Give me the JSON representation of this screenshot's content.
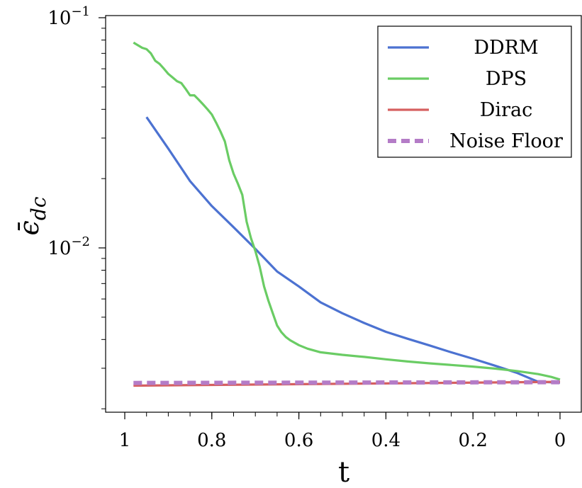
{
  "chart_data": {
    "type": "line",
    "xlabel": "t",
    "ylabel": "ϵ̄",
    "ylabel_sub": "dc",
    "xlim": [
      1.0,
      0.0
    ],
    "x_reversed": true,
    "ylim": [
      0.0021,
      0.1
    ],
    "y_scale": "log",
    "grid": false,
    "legend_position": "top-right",
    "x_ticks": [
      {
        "value": 1.0,
        "label": "1"
      },
      {
        "value": 0.8,
        "label": "0.8"
      },
      {
        "value": 0.6,
        "label": "0.6"
      },
      {
        "value": 0.4,
        "label": "0.4"
      },
      {
        "value": 0.2,
        "label": "0.2"
      },
      {
        "value": 0.0,
        "label": "0"
      }
    ],
    "y_ticks": [
      {
        "value": 0.1,
        "base": "10",
        "exp": "−1"
      },
      {
        "value": 0.01,
        "base": "10",
        "exp": "−2"
      }
    ],
    "series": [
      {
        "name": "DDRM",
        "color": "#4c72d1",
        "dash": false,
        "x": [
          0.95,
          0.9,
          0.85,
          0.8,
          0.75,
          0.7,
          0.65,
          0.6,
          0.55,
          0.5,
          0.45,
          0.4,
          0.35,
          0.3,
          0.25,
          0.2,
          0.15,
          0.1,
          0.05,
          0.0
        ],
        "y": [
          0.037,
          0.027,
          0.0195,
          0.0152,
          0.0123,
          0.0099,
          0.0079,
          0.0068,
          0.0058,
          0.0052,
          0.00472,
          0.00432,
          0.00403,
          0.00377,
          0.00352,
          0.0033,
          0.00308,
          0.00287,
          0.00262,
          0.0026
        ]
      },
      {
        "name": "DPS",
        "color": "#6acc64",
        "dash": false,
        "x": [
          0.98,
          0.96,
          0.95,
          0.94,
          0.93,
          0.92,
          0.91,
          0.9,
          0.89,
          0.88,
          0.87,
          0.86,
          0.85,
          0.84,
          0.83,
          0.82,
          0.81,
          0.8,
          0.79,
          0.78,
          0.77,
          0.76,
          0.75,
          0.74,
          0.73,
          0.72,
          0.71,
          0.7,
          0.69,
          0.68,
          0.67,
          0.66,
          0.65,
          0.64,
          0.63,
          0.62,
          0.6,
          0.58,
          0.55,
          0.5,
          0.45,
          0.4,
          0.35,
          0.3,
          0.25,
          0.2,
          0.15,
          0.1,
          0.05,
          0.02,
          0.0
        ],
        "y": [
          0.078,
          0.074,
          0.073,
          0.07,
          0.065,
          0.063,
          0.06,
          0.057,
          0.055,
          0.053,
          0.052,
          0.049,
          0.046,
          0.046,
          0.044,
          0.042,
          0.04,
          0.038,
          0.035,
          0.032,
          0.029,
          0.024,
          0.021,
          0.019,
          0.017,
          0.013,
          0.011,
          0.0097,
          0.0083,
          0.0068,
          0.0059,
          0.0052,
          0.0046,
          0.0043,
          0.0041,
          0.00397,
          0.00378,
          0.00365,
          0.00352,
          0.00343,
          0.00336,
          0.00328,
          0.00321,
          0.00315,
          0.0031,
          0.00305,
          0.00299,
          0.00292,
          0.00283,
          0.00275,
          0.00268
        ]
      },
      {
        "name": "Dirac",
        "color": "#d65f5f",
        "dash": false,
        "x": [
          0.98,
          0.0
        ],
        "y": [
          0.00252,
          0.00262
        ]
      },
      {
        "name": "Noise Floor",
        "color": "#b47cc7",
        "dash": true,
        "x": [
          0.98,
          0.0
        ],
        "y": [
          0.00259,
          0.00261
        ]
      }
    ]
  }
}
